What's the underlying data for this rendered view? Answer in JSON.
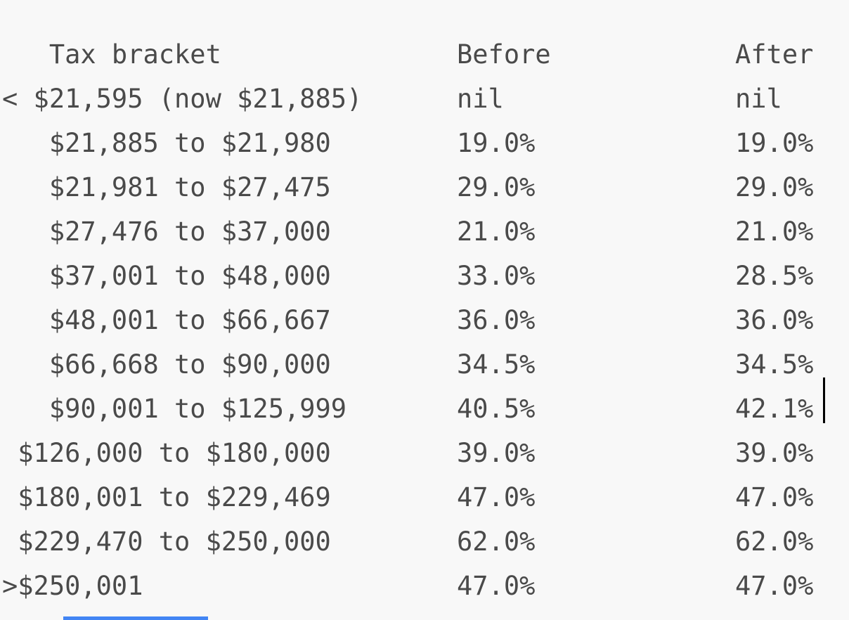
{
  "table": {
    "header": {
      "bracket_label": "Tax bracket",
      "before_label": "Before",
      "after_label": "After",
      "header_indent": 3
    },
    "rows": [
      {
        "indent": 0,
        "bracket": "< $21,595 (now $21,885)",
        "before": "nil",
        "after": "nil"
      },
      {
        "indent": 3,
        "bracket": "$21,885 to $21,980",
        "before": "19.0%",
        "after": "19.0%"
      },
      {
        "indent": 3,
        "bracket": "$21,981 to $27,475",
        "before": "29.0%",
        "after": "29.0%"
      },
      {
        "indent": 3,
        "bracket": "$27,476 to $37,000",
        "before": "21.0%",
        "after": "21.0%"
      },
      {
        "indent": 3,
        "bracket": "$37,001 to $48,000",
        "before": "33.0%",
        "after": "28.5%"
      },
      {
        "indent": 3,
        "bracket": "$48,001 to $66,667",
        "before": "36.0%",
        "after": "36.0%"
      },
      {
        "indent": 3,
        "bracket": "$66,668 to $90,000",
        "before": "34.5%",
        "after": "34.5%"
      },
      {
        "indent": 3,
        "bracket": "$90,001 to $125,999",
        "before": "40.5%",
        "after": "42.1%"
      },
      {
        "indent": 1,
        "bracket": "$126,000 to $180,000",
        "before": "39.0%",
        "after": "39.0%"
      },
      {
        "indent": 1,
        "bracket": "$180,001 to $229,469",
        "before": "47.0%",
        "after": "47.0%"
      },
      {
        "indent": 1,
        "bracket": "$229,470 to $250,000",
        "before": "62.0%",
        "after": "62.0%"
      },
      {
        "indent": 0,
        "bracket": ">$250,001",
        "before": "47.0%",
        "after": "47.0%"
      }
    ]
  },
  "caret": {
    "present": true,
    "after_text": "42.1%"
  },
  "colors": {
    "background": "#f8f8f8",
    "text": "#4a4a4a",
    "caret": "#000000",
    "accent_bar": "#4285f4"
  }
}
